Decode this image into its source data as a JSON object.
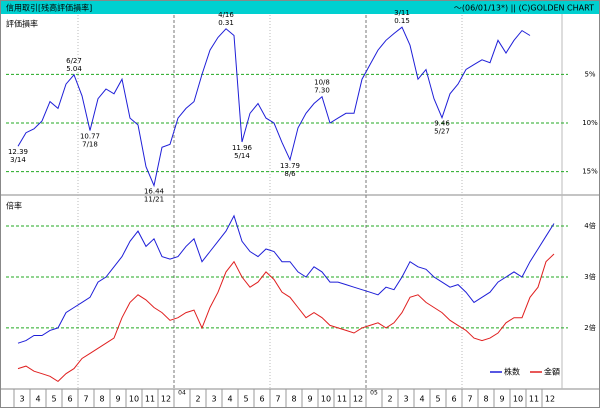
{
  "header": {
    "title": "信用取引[残高評価損率]",
    "note": "～(06/01/13*) || (C)GOLDEN CHART"
  },
  "chart_data": [
    {
      "type": "line",
      "title": "評価損率",
      "color": "#1f1fd8",
      "values": [
        12.39,
        11.0,
        10.6,
        9.8,
        7.8,
        8.5,
        6.0,
        5.04,
        7.2,
        10.77,
        7.5,
        6.5,
        7.0,
        5.5,
        9.5,
        10.2,
        14.5,
        16.44,
        12.5,
        12.2,
        9.5,
        8.5,
        7.8,
        5.0,
        2.5,
        1.2,
        0.31,
        1.0,
        11.96,
        9.0,
        8.0,
        9.5,
        10.0,
        12.0,
        13.79,
        10.5,
        9.0,
        8.0,
        7.3,
        10.0,
        9.5,
        9.0,
        9.0,
        5.5,
        4.0,
        2.5,
        1.5,
        0.8,
        0.15,
        2.0,
        5.5,
        4.5,
        7.5,
        9.46,
        7.0,
        6.0,
        4.5,
        4.0,
        3.5,
        3.8,
        1.5,
        2.8,
        1.5,
        0.5,
        1.0,
        null,
        null,
        null
      ],
      "annotations": [
        {
          "value": 12.39,
          "label": "12.39",
          "date": "3/14"
        },
        {
          "value": 5.04,
          "label": "5.04",
          "date": "6/27"
        },
        {
          "value": 10.77,
          "label": "10.77",
          "date": "7/18"
        },
        {
          "value": 16.44,
          "label": "16.44",
          "date": "11/21"
        },
        {
          "value": 0.31,
          "label": "0.31",
          "date": "4/16"
        },
        {
          "value": 11.96,
          "label": "11.96",
          "date": "5/14"
        },
        {
          "value": 13.79,
          "label": "13.79",
          "date": "8/6"
        },
        {
          "value": 7.3,
          "label": "7.30",
          "date": "10/8"
        },
        {
          "value": 0.15,
          "label": "0.15",
          "date": "3/11"
        },
        {
          "value": 9.46,
          "label": "9.46",
          "date": "5/27"
        }
      ],
      "ylim": [
        17.2,
        -0.9
      ],
      "yticks": [
        {
          "value": 5,
          "label": "5%"
        },
        {
          "value": 10,
          "label": "10%"
        },
        {
          "value": 15,
          "label": "15%"
        }
      ],
      "grid": true
    },
    {
      "type": "line",
      "title": "倍率",
      "categories": [
        "3",
        null,
        "4",
        null,
        "5",
        null,
        "6",
        null,
        "7",
        null,
        "8",
        null,
        "9",
        null,
        "10",
        null,
        "11",
        null,
        "12",
        null,
        "04",
        null,
        "2",
        null,
        "3",
        null,
        "4",
        null,
        "5",
        null,
        "6",
        null,
        "7",
        null,
        "8",
        null,
        "9",
        null,
        "10",
        null,
        "11",
        null,
        "12",
        null,
        "05",
        null,
        "2",
        null,
        "3",
        null,
        "4",
        null,
        "5",
        null,
        "6",
        null,
        "7",
        null,
        "8",
        null,
        "9",
        null,
        "10",
        null,
        "11",
        null,
        "12",
        null
      ],
      "series": [
        {
          "name": "株数",
          "color": "#1f1fd8",
          "values": [
            1.7,
            1.75,
            1.85,
            1.85,
            1.95,
            2.0,
            2.3,
            2.4,
            2.5,
            2.6,
            2.9,
            3.0,
            3.2,
            3.4,
            3.7,
            3.9,
            3.6,
            3.75,
            3.4,
            3.35,
            3.4,
            3.6,
            3.75,
            3.3,
            3.5,
            3.7,
            3.9,
            4.2,
            3.7,
            3.5,
            3.4,
            3.55,
            3.5,
            3.3,
            3.3,
            3.1,
            3.0,
            3.2,
            3.1,
            2.9,
            2.9,
            2.85,
            2.8,
            2.75,
            2.7,
            2.65,
            2.8,
            2.75,
            3.0,
            3.3,
            3.2,
            3.15,
            3.0,
            2.9,
            2.8,
            2.85,
            2.7,
            2.5,
            2.6,
            2.7,
            2.9,
            3.0,
            3.1,
            3.0,
            3.3,
            3.55,
            3.8,
            4.05
          ]
        },
        {
          "name": "金額",
          "color": "#e02020",
          "values": [
            1.2,
            1.25,
            1.15,
            1.1,
            1.05,
            0.95,
            1.1,
            1.2,
            1.4,
            1.5,
            1.6,
            1.7,
            1.8,
            2.2,
            2.5,
            2.65,
            2.55,
            2.4,
            2.3,
            2.15,
            2.2,
            2.3,
            2.35,
            2.0,
            2.4,
            2.7,
            3.1,
            3.3,
            3.0,
            2.8,
            2.9,
            3.1,
            2.95,
            2.7,
            2.6,
            2.4,
            2.2,
            2.3,
            2.2,
            2.05,
            2.0,
            1.95,
            1.9,
            2.0,
            2.05,
            2.1,
            2.0,
            2.1,
            2.3,
            2.6,
            2.65,
            2.5,
            2.4,
            2.3,
            2.15,
            2.05,
            1.95,
            1.8,
            1.75,
            1.8,
            1.9,
            2.1,
            2.2,
            2.2,
            2.6,
            2.8,
            3.3,
            3.45
          ]
        }
      ],
      "ylim": [
        0.82,
        4.57
      ],
      "yticks": [
        {
          "value": 2,
          "label": "2倍"
        },
        {
          "value": 3,
          "label": "3倍"
        },
        {
          "value": 4,
          "label": "4倍"
        }
      ],
      "grid": true
    }
  ]
}
